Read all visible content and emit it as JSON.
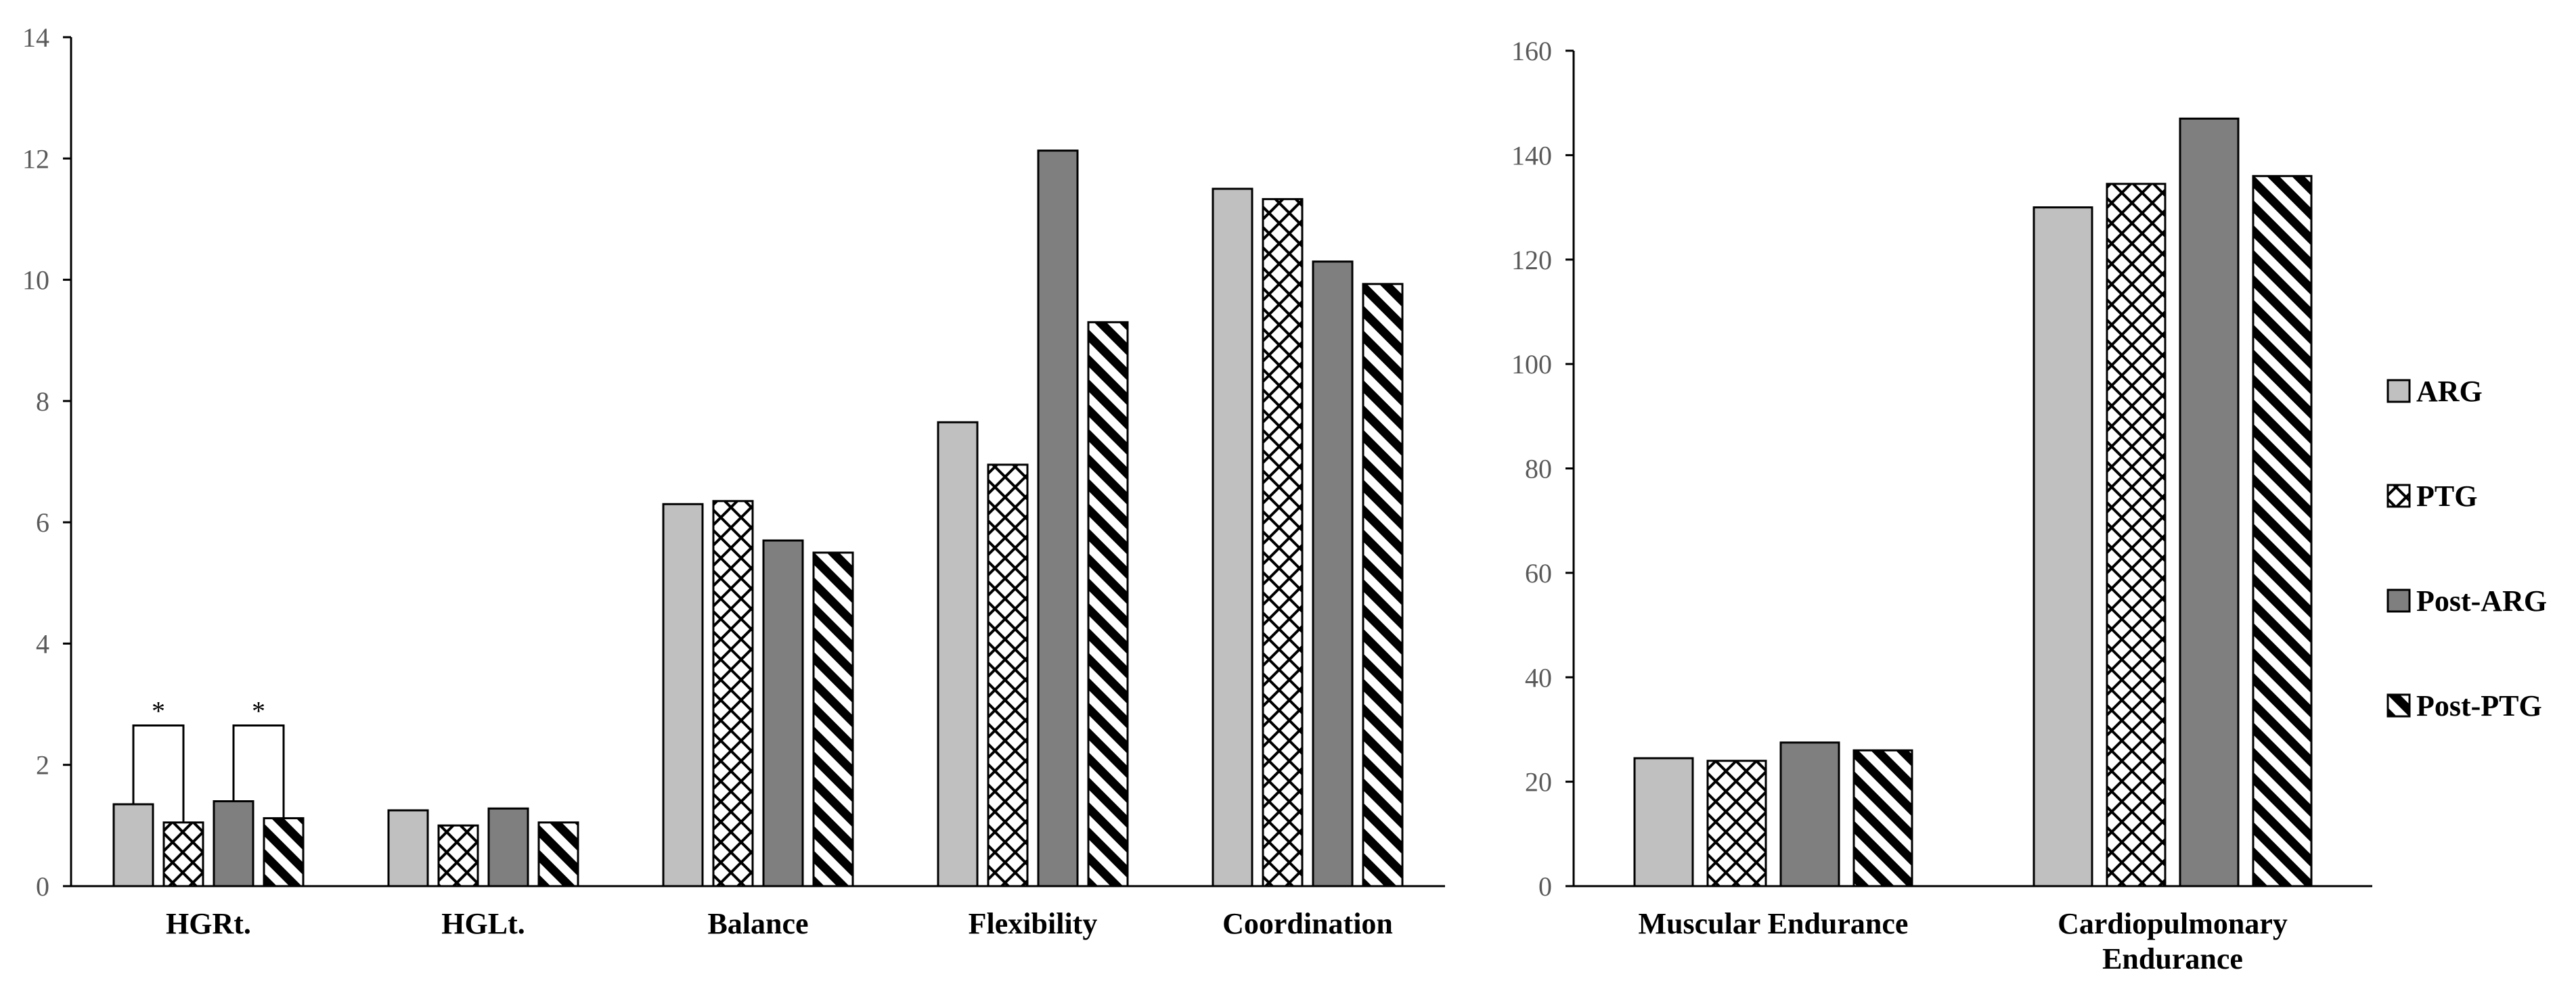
{
  "chart_data": [
    {
      "type": "bar",
      "categories": [
        "HGRt.",
        "HGLt.",
        "Balance",
        "Flexibility",
        "Coordination"
      ],
      "series": [
        {
          "name": "ARG",
          "values": [
            1.35,
            1.25,
            6.3,
            7.65,
            11.5
          ]
        },
        {
          "name": "PTG",
          "values": [
            1.05,
            1.0,
            6.35,
            6.95,
            11.33
          ]
        },
        {
          "name": "Post-ARG",
          "values": [
            1.4,
            1.28,
            5.7,
            12.13,
            10.3
          ]
        },
        {
          "name": "Post-PTG",
          "values": [
            1.12,
            1.05,
            5.5,
            9.3,
            9.93
          ]
        }
      ],
      "ylim": [
        0,
        14
      ],
      "yticks": [
        "0",
        "2",
        "4",
        "6",
        "8",
        "10",
        "12",
        "14"
      ],
      "grid": false,
      "annotations": [
        {
          "text": "*",
          "category": "HGRt.",
          "between": [
            "ARG",
            "PTG"
          ],
          "level": 2.65
        },
        {
          "text": "*",
          "category": "HGRt.",
          "between": [
            "Post-ARG",
            "Post-PTG"
          ],
          "level": 2.65
        }
      ]
    },
    {
      "type": "bar",
      "categories": [
        "Muscular Endurance",
        "Cardiopulmonary Endurance"
      ],
      "category_lines": [
        [
          "Muscular Endurance"
        ],
        [
          "Cardiopulmonary",
          "Endurance"
        ]
      ],
      "series": [
        {
          "name": "ARG",
          "values": [
            24.5,
            130
          ]
        },
        {
          "name": "PTG",
          "values": [
            24,
            134.5
          ]
        },
        {
          "name": "Post-ARG",
          "values": [
            27.5,
            147
          ]
        },
        {
          "name": "Post-PTG",
          "values": [
            26,
            136
          ]
        }
      ],
      "ylim": [
        0,
        160
      ],
      "yticks": [
        "0",
        "20",
        "40",
        "60",
        "80",
        "100",
        "120",
        "140",
        "160"
      ],
      "grid": false,
      "legend_position": "right"
    }
  ],
  "legend": {
    "items": [
      {
        "label": "ARG",
        "pattern": "solid-light"
      },
      {
        "label": "PTG",
        "pattern": "crosshatch"
      },
      {
        "label": "Post-ARG",
        "pattern": "solid-dark"
      },
      {
        "label": "Post-PTG",
        "pattern": "diagonal-stripes"
      }
    ]
  },
  "colors": {
    "light_gray": "#c0c0c0",
    "dark_gray": "#7f7f7f",
    "outline": "#000000",
    "axis": "#000000",
    "tick_text": "#595959"
  }
}
